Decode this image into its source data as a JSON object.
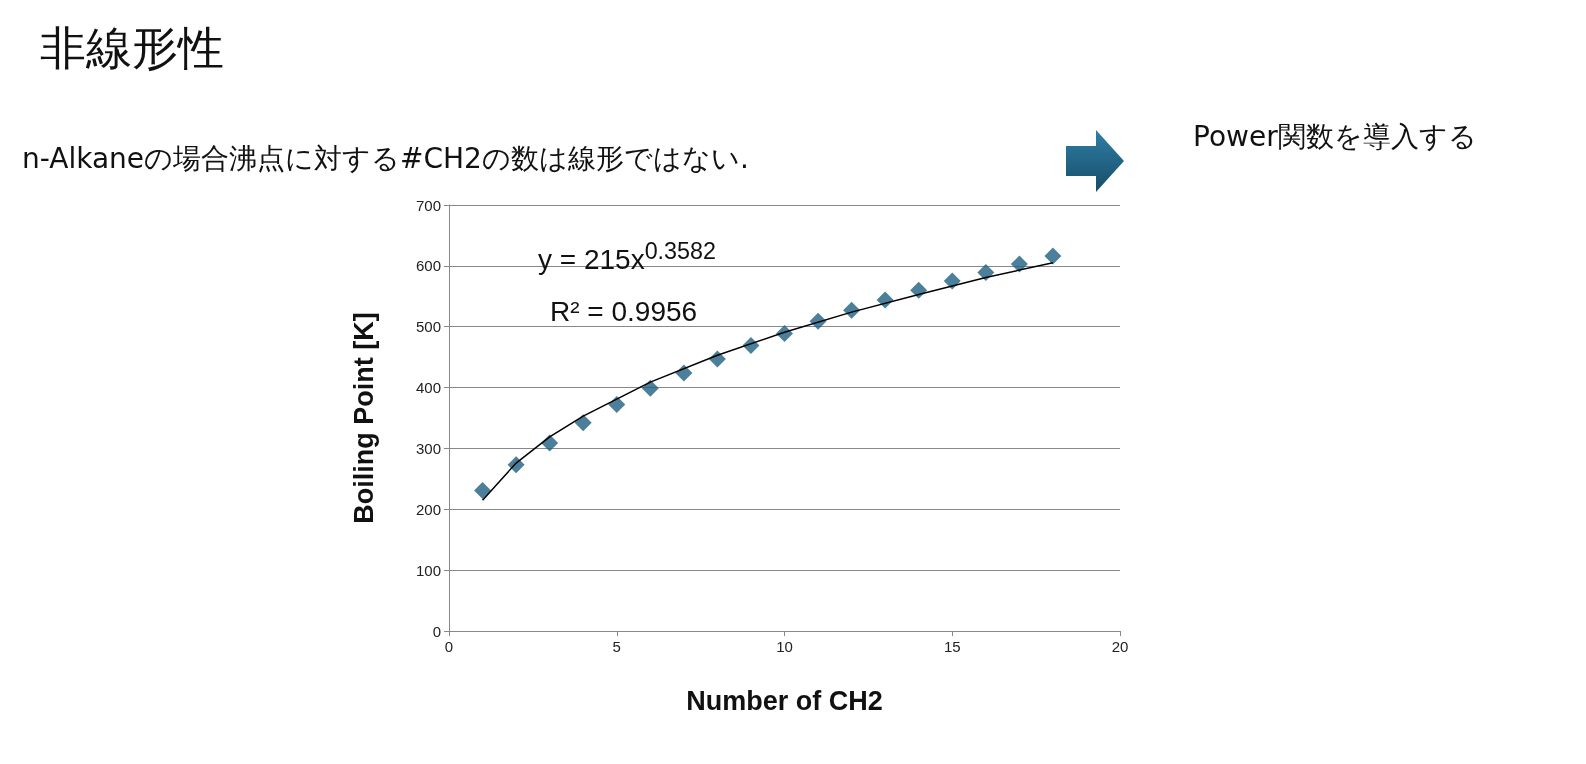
{
  "chart_data": {
    "type": "scatter",
    "title": "非線形性",
    "subtitle": "n-Alkaneの場合沸点に対する#CH2の数は線形ではない.",
    "xlabel": "Number of CH2",
    "ylabel": "Boiling Point [K]",
    "annotations": [
      "Power関数を導入する",
      "y = 215x$^{0.3582}$",
      "R² = 0.9956"
    ],
    "series": [
      {
        "marker": "diamond",
        "color": "#1f5f80",
        "x": [
          1,
          2,
          3,
          4,
          5,
          6,
          7,
          8,
          9,
          10,
          11,
          12,
          13,
          14,
          15,
          16,
          17,
          18
        ],
        "values": [
          231,
          273,
          309,
          342,
          372,
          399,
          424,
          447,
          469,
          489,
          509,
          527,
          544,
          560,
          575,
          589,
          603,
          616
        ]
      },
      {
        "type": "line",
        "marker": "none",
        "line_style": "solid",
        "color": "#000000",
        "x": [
          1,
          2,
          3,
          4,
          6,
          8,
          10,
          12,
          14,
          16,
          18
        ],
        "values": [
          215,
          276,
          319,
          353,
          409,
          453,
          491,
          524,
          553,
          581,
          605
        ]
      }
    ],
    "xlim": [
      0,
      20
    ],
    "xticks": [
      0,
      5,
      10,
      15,
      20
    ],
    "ylim": [
      0,
      700
    ],
    "yticks": [
      0,
      100,
      200,
      300,
      400,
      500,
      600,
      700
    ],
    "grid": "y"
  }
}
